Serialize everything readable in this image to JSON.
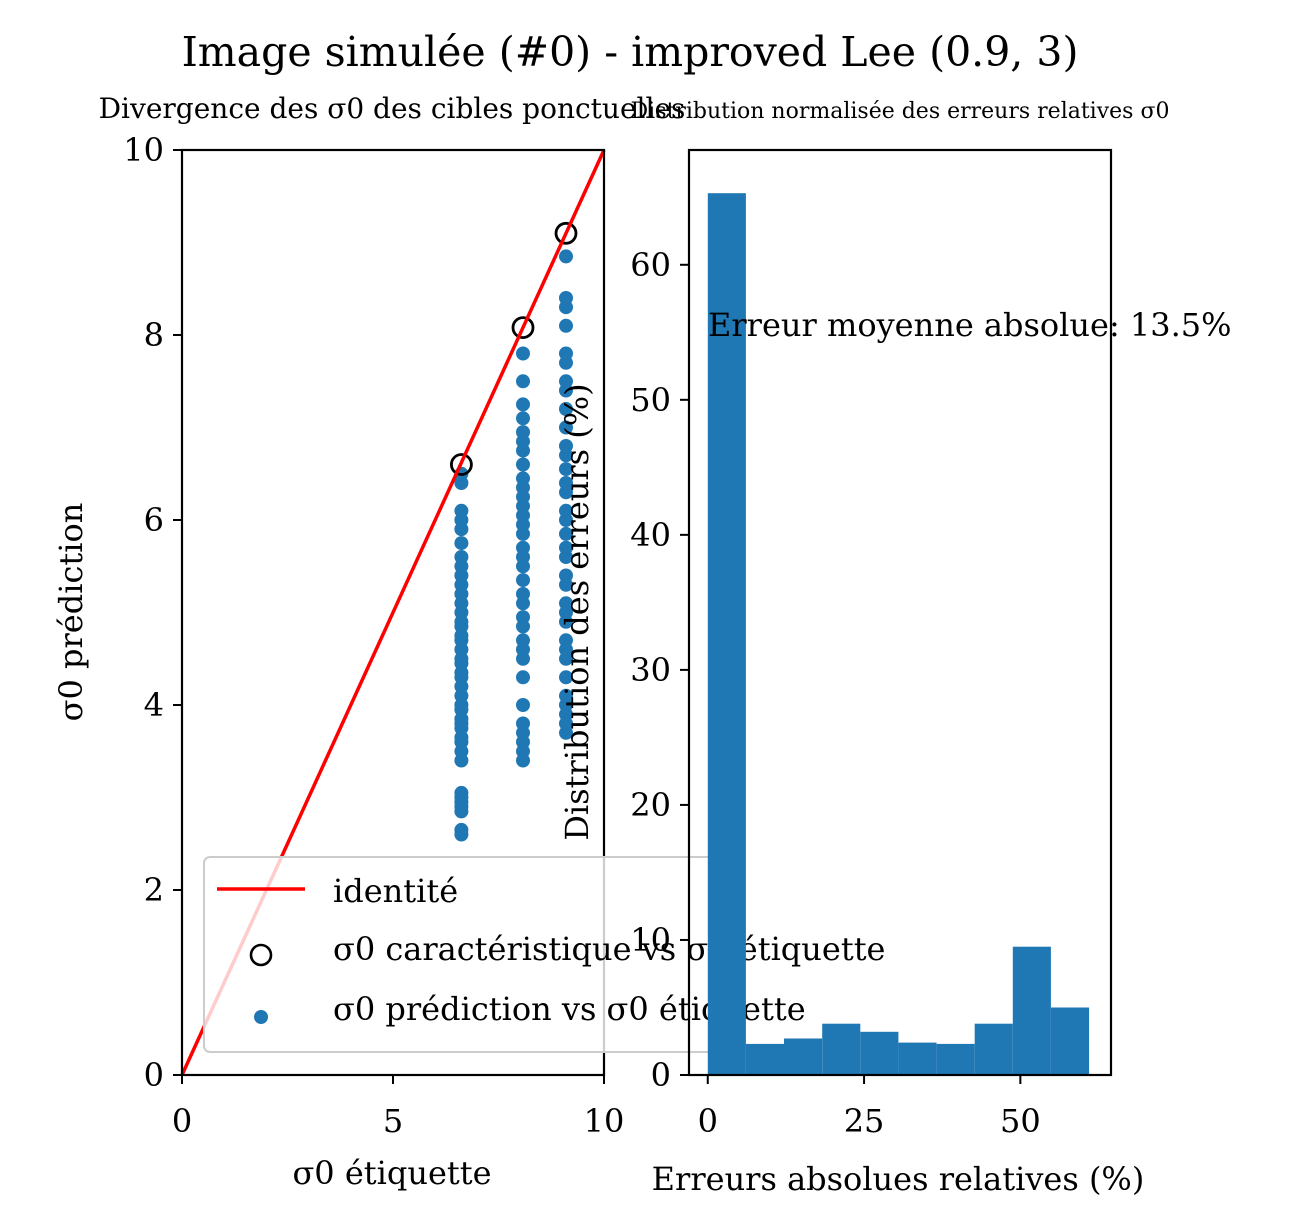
{
  "suptitle": "Image simulée (#0) - improved Lee (0.9, 3)",
  "chart_data": [
    {
      "type": "scatter",
      "title": "Divergence des σ0 des cibles ponctuelles",
      "xlabel": "σ0 étiquette",
      "ylabel": "σ0 prédiction",
      "xlim": [
        0,
        10
      ],
      "ylim": [
        0,
        10
      ],
      "xticks": [
        0,
        5,
        10
      ],
      "yticks": [
        0,
        2,
        4,
        6,
        8,
        10
      ],
      "grid": false,
      "legend_position": "lower-left",
      "identity_line": {
        "name": "identité",
        "x": [
          0,
          10
        ],
        "y": [
          0,
          10
        ],
        "color": "#ff0000"
      },
      "characteristic_points": {
        "name": "σ0 caractéristique vs σ0 étiquette",
        "x": [
          6.62,
          8.08,
          9.1
        ],
        "y": [
          6.6,
          8.08,
          9.1
        ]
      },
      "prediction_points": {
        "name": "σ0 prédiction vs σ0 étiquette",
        "color": "#1f77b4",
        "series": [
          {
            "x": 6.62,
            "y": [
              2.6,
              2.65,
              2.85,
              2.9,
              2.95,
              3.0,
              3.05,
              3.4,
              3.5,
              3.6,
              3.65,
              3.75,
              3.8,
              3.85,
              3.95,
              4.0,
              4.1,
              4.2,
              4.3,
              4.35,
              4.45,
              4.5,
              4.6,
              4.7,
              4.75,
              4.85,
              4.9,
              5.0,
              5.1,
              5.2,
              5.3,
              5.4,
              5.5,
              5.6,
              5.75,
              5.9,
              6.0,
              6.1,
              6.4,
              6.5
            ]
          },
          {
            "x": 8.08,
            "y": [
              3.4,
              3.5,
              3.6,
              3.7,
              3.8,
              4.0,
              4.3,
              4.5,
              4.6,
              4.7,
              4.85,
              4.95,
              5.1,
              5.2,
              5.35,
              5.5,
              5.6,
              5.7,
              5.85,
              5.95,
              6.05,
              6.15,
              6.25,
              6.35,
              6.45,
              6.6,
              6.75,
              6.85,
              6.95,
              7.1,
              7.25,
              7.5,
              7.8
            ]
          },
          {
            "x": 9.1,
            "y": [
              3.7,
              3.8,
              3.9,
              4.0,
              4.1,
              4.3,
              4.5,
              4.6,
              4.7,
              4.9,
              5.0,
              5.1,
              5.3,
              5.4,
              5.6,
              5.7,
              5.85,
              6.0,
              6.1,
              6.3,
              6.4,
              6.55,
              6.7,
              6.8,
              7.0,
              7.2,
              7.4,
              7.5,
              7.7,
              7.8,
              8.1,
              8.3,
              8.4,
              8.85
            ]
          }
        ]
      }
    },
    {
      "type": "bar",
      "title": "Distribution normalisée des erreurs relatives σ0",
      "xlabel": "Erreurs absolues relatives (%)",
      "ylabel": "Distribution des erreurs (%)",
      "xlim": [
        -3,
        64.5
      ],
      "ylim": [
        0,
        68.5
      ],
      "xticks": [
        0,
        25,
        50
      ],
      "yticks": [
        0,
        10,
        20,
        30,
        40,
        50,
        60
      ],
      "bin_edges": [
        0,
        6.1,
        12.2,
        18.3,
        24.4,
        30.5,
        36.6,
        42.7,
        48.8,
        54.9,
        61.0
      ],
      "values": [
        65.3,
        2.3,
        2.7,
        3.8,
        3.2,
        2.4,
        2.3,
        3.8,
        9.5,
        5.0
      ],
      "color": "#1f77b4",
      "annotation": "Erreur moyenne absolue: 13.5%"
    }
  ]
}
